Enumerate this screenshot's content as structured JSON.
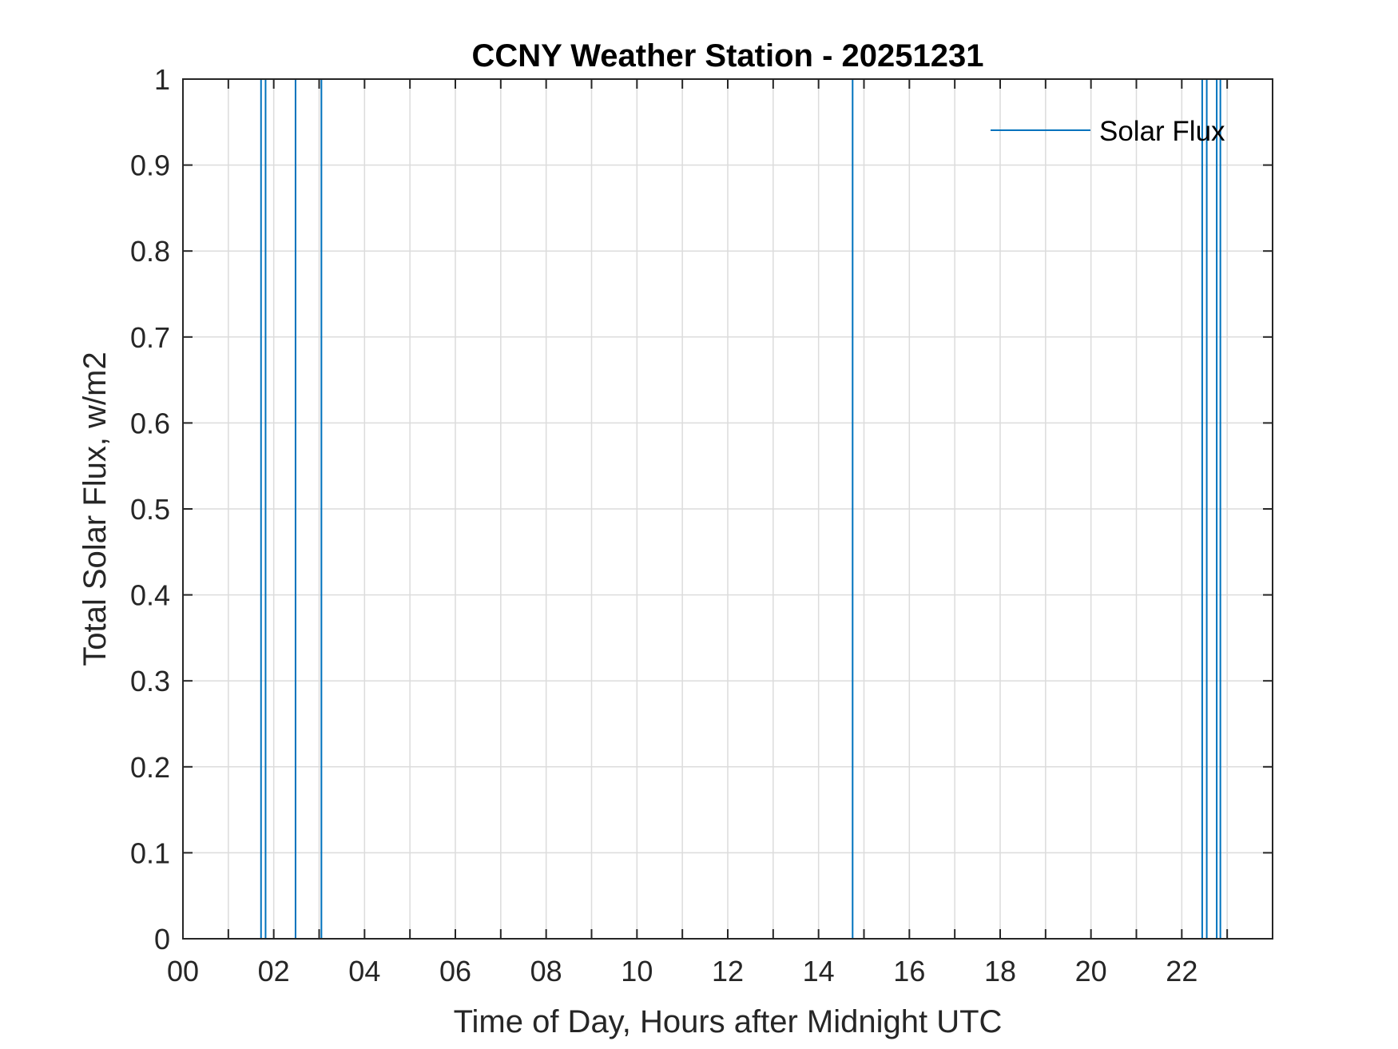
{
  "chart_data": {
    "type": "line",
    "title": "CCNY Weather Station - 20251231",
    "xlabel": "Time of Day, Hours after Midnight UTC",
    "ylabel": "Total Solar Flux, w/m2",
    "xlim": [
      0,
      24
    ],
    "ylim": [
      0,
      1
    ],
    "x_ticks": [
      0,
      2,
      4,
      6,
      8,
      10,
      12,
      14,
      16,
      18,
      20,
      22
    ],
    "x_tick_labels": [
      "00",
      "02",
      "04",
      "06",
      "08",
      "10",
      "12",
      "14",
      "16",
      "18",
      "20",
      "22"
    ],
    "x_minor_grid_step": 1,
    "y_ticks": [
      0,
      0.1,
      0.2,
      0.3,
      0.4,
      0.5,
      0.6,
      0.7,
      0.8,
      0.9,
      1
    ],
    "y_tick_labels": [
      "0",
      "0.1",
      "0.2",
      "0.3",
      "0.4",
      "0.5",
      "0.6",
      "0.7",
      "0.8",
      "0.9",
      "1"
    ],
    "grid": true,
    "legend_position": "top-right",
    "series": [
      {
        "name": "Solar Flux",
        "color": "#0072BD",
        "spike_x": [
          1.72,
          1.82,
          2.48,
          3.05,
          14.75,
          22.45,
          22.55,
          22.77,
          22.85
        ]
      }
    ]
  }
}
